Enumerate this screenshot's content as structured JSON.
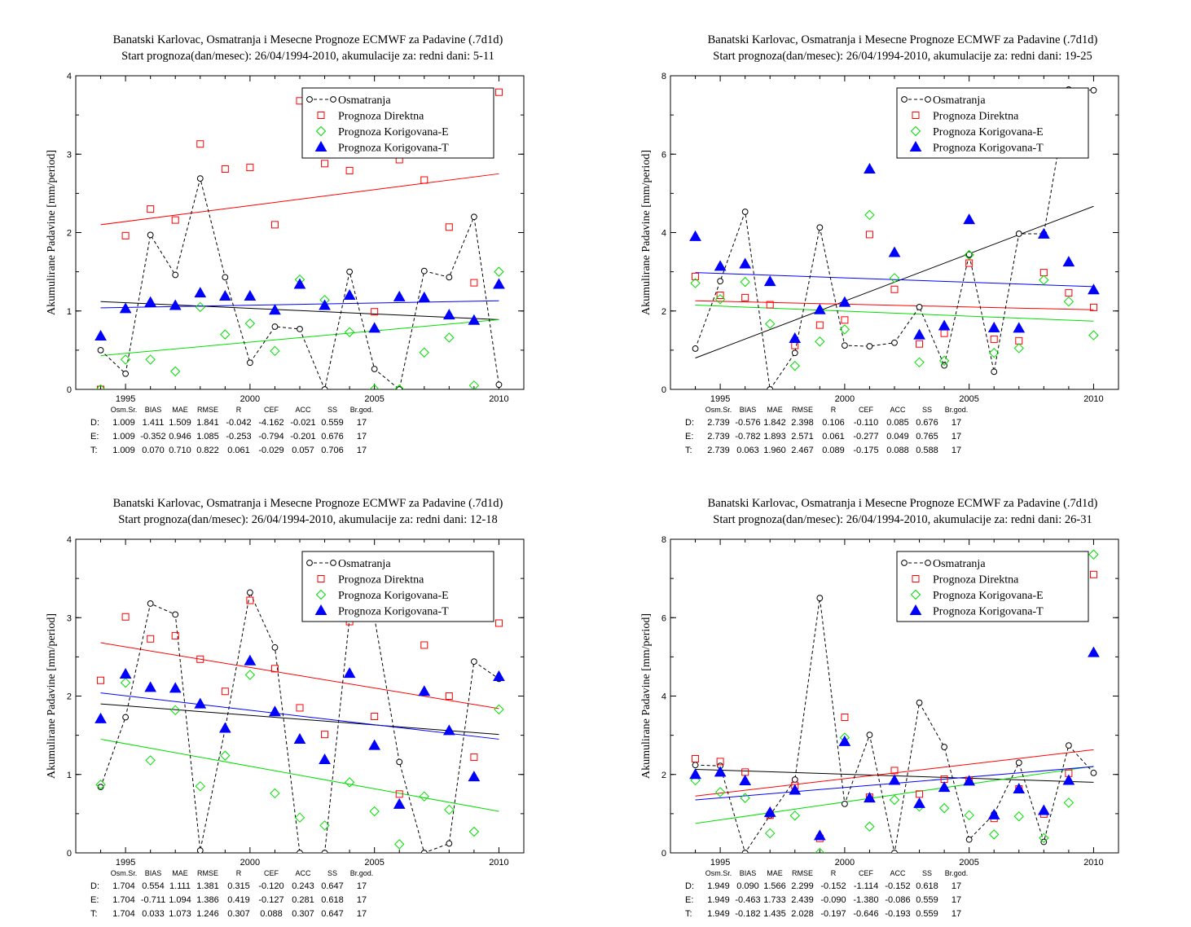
{
  "colors": {
    "osmatranja": "#000000",
    "direktna": "#ff0000",
    "korigovana_e": "#00e000",
    "korigovana_t": "#0000ff"
  },
  "stats_headers": [
    "Osm.Sr.",
    "BIAS",
    "MAE",
    "RMSE",
    "R",
    "CEF",
    "ACC",
    "SS",
    "Br.god."
  ],
  "chart_data": [
    {
      "type": "scatter",
      "title": "Banatski Karlovac, Osmatranja i Mesecne Prognoze ECMWF za Padavine (.7d1d)",
      "subtitle": "Start prognoza(dan/mesec): 26/04/1994-2010, akumulacije za: redni dani: 5-11",
      "xlabel": "",
      "ylabel": "Akumulirane Padavine [mm/period]",
      "xlim": [
        1993,
        2011
      ],
      "ylim": [
        0,
        4
      ],
      "xticks": [
        1995,
        2000,
        2005,
        2010
      ],
      "yticks": [
        0,
        1,
        2,
        3,
        4
      ],
      "legend_position": "top-right",
      "x": [
        1994,
        1995,
        1996,
        1997,
        1998,
        1999,
        2000,
        2001,
        2002,
        2003,
        2004,
        2005,
        2006,
        2007,
        2008,
        2009,
        2010
      ],
      "series": [
        {
          "name": "Osmatranja",
          "key": "osmatranja",
          "marker": "circle",
          "line": "dashed",
          "values": [
            0.5,
            0.2,
            1.97,
            1.46,
            2.69,
            1.43,
            0.34,
            0.8,
            0.77,
            0.0,
            1.5,
            0.26,
            0.0,
            1.51,
            1.43,
            2.2,
            0.06
          ],
          "trend": [
            1.12,
            0.89
          ]
        },
        {
          "name": "Prognoza Direktna",
          "key": "direktna",
          "marker": "square",
          "values": [
            0.0,
            1.96,
            2.3,
            2.16,
            3.13,
            2.81,
            2.83,
            2.1,
            3.68,
            2.88,
            2.79,
            0.99,
            2.93,
            2.67,
            2.07,
            1.36,
            3.79
          ],
          "trend": [
            2.1,
            2.75
          ]
        },
        {
          "name": "Prognoza Korigovana-E",
          "key": "korigovana_e",
          "marker": "diamond",
          "values": [
            0.0,
            0.38,
            0.38,
            0.23,
            1.05,
            0.7,
            0.84,
            0.49,
            1.4,
            1.14,
            0.73,
            0.0,
            0.0,
            0.47,
            0.66,
            0.05,
            1.5
          ],
          "trend": [
            0.43,
            0.89
          ]
        },
        {
          "name": "Prognoza Korigovana-T",
          "key": "korigovana_t",
          "marker": "triangle",
          "values": [
            0.68,
            1.03,
            1.11,
            1.07,
            1.23,
            1.19,
            1.19,
            1.01,
            1.34,
            1.07,
            1.2,
            0.78,
            1.18,
            1.17,
            0.95,
            0.88,
            1.34
          ],
          "trend": [
            1.04,
            1.13
          ]
        }
      ],
      "stats": [
        {
          "label": "D:",
          "key": "direktna",
          "values": [
            "1.009",
            "1.411",
            "1.509",
            "1.841",
            "-0.042",
            "-4.162",
            "-0.021",
            "0.559",
            "17"
          ]
        },
        {
          "label": "E:",
          "key": "korigovana_e",
          "values": [
            "1.009",
            "-0.352",
            "0.946",
            "1.085",
            "-0.253",
            "-0.794",
            "-0.201",
            "0.676",
            "17"
          ]
        },
        {
          "label": "T:",
          "key": "korigovana_t",
          "values": [
            "1.009",
            "0.070",
            "0.710",
            "0.822",
            "0.061",
            "-0.029",
            "0.057",
            "0.706",
            "17"
          ]
        }
      ]
    },
    {
      "type": "scatter",
      "title": "Banatski Karlovac, Osmatranja i Mesecne Prognoze ECMWF za Padavine (.7d1d)",
      "subtitle": "Start prognoza(dan/mesec): 26/04/1994-2010, akumulacije za: redni dani: 19-25",
      "xlabel": "",
      "ylabel": "Akumulirane Padavine [mm/period]",
      "xlim": [
        1993,
        2011
      ],
      "ylim": [
        0,
        8
      ],
      "xticks": [
        1995,
        2000,
        2005,
        2010
      ],
      "yticks": [
        0,
        2,
        4,
        6,
        8
      ],
      "legend_position": "top-right",
      "x": [
        1994,
        1995,
        1996,
        1997,
        1998,
        1999,
        2000,
        2001,
        2002,
        2003,
        2004,
        2005,
        2006,
        2007,
        2008,
        2009,
        2010
      ],
      "series": [
        {
          "name": "Osmatranja",
          "key": "osmatranja",
          "marker": "circle",
          "line": "dashed",
          "values": [
            1.04,
            2.76,
            4.53,
            0.0,
            0.93,
            4.13,
            1.12,
            1.1,
            1.19,
            2.1,
            0.61,
            3.44,
            0.45,
            3.97,
            3.97,
            7.65,
            7.63
          ],
          "trend": [
            0.8,
            4.67
          ]
        },
        {
          "name": "Prognoza Direktna",
          "key": "direktna",
          "marker": "square",
          "values": [
            2.88,
            2.4,
            2.34,
            2.16,
            1.12,
            1.64,
            1.77,
            3.95,
            2.55,
            1.16,
            1.43,
            3.22,
            1.28,
            1.24,
            2.98,
            2.46,
            2.09
          ],
          "trend": [
            2.26,
            2.03
          ]
        },
        {
          "name": "Prognoza Korigovana-E",
          "key": "korigovana_e",
          "marker": "diamond",
          "values": [
            2.71,
            2.3,
            2.74,
            1.67,
            0.6,
            1.22,
            1.53,
            4.45,
            2.84,
            0.69,
            0.73,
            3.43,
            0.93,
            1.05,
            2.79,
            2.24,
            1.38
          ],
          "trend": [
            2.15,
            1.74
          ]
        },
        {
          "name": "Prognoza Korigovana-T",
          "key": "korigovana_t",
          "marker": "triangle",
          "values": [
            3.9,
            3.14,
            3.2,
            2.75,
            1.3,
            2.03,
            2.22,
            5.62,
            3.49,
            1.39,
            1.62,
            4.33,
            1.57,
            1.56,
            3.96,
            3.25,
            2.54
          ],
          "trend": [
            2.98,
            2.62
          ]
        }
      ],
      "stats": [
        {
          "label": "D:",
          "key": "direktna",
          "values": [
            "2.739",
            "-0.576",
            "1.842",
            "2.398",
            "0.106",
            "-0.110",
            "0.085",
            "0.676",
            "17"
          ]
        },
        {
          "label": "E:",
          "key": "korigovana_e",
          "values": [
            "2.739",
            "-0.782",
            "1.893",
            "2.571",
            "0.061",
            "-0.277",
            "0.049",
            "0.765",
            "17"
          ]
        },
        {
          "label": "T:",
          "key": "korigovana_t",
          "values": [
            "2.739",
            "0.063",
            "1.960",
            "2.467",
            "0.089",
            "-0.175",
            "0.088",
            "0.588",
            "17"
          ]
        }
      ]
    },
    {
      "type": "scatter",
      "title": "Banatski Karlovac, Osmatranja i Mesecne Prognoze ECMWF za Padavine (.7d1d)",
      "subtitle": "Start prognoza(dan/mesec): 26/04/1994-2010, akumulacije za: redni dani: 12-18",
      "xlabel": "",
      "ylabel": "Akumulirane Padavine [mm/period]",
      "xlim": [
        1993,
        2011
      ],
      "ylim": [
        0,
        4
      ],
      "xticks": [
        1995,
        2000,
        2005,
        2010
      ],
      "yticks": [
        0,
        1,
        2,
        3,
        4
      ],
      "legend_position": "top-right",
      "x": [
        1994,
        1995,
        1996,
        1997,
        1998,
        1999,
        2000,
        2001,
        2002,
        2003,
        2004,
        2005,
        2006,
        2007,
        2008,
        2009,
        2010
      ],
      "series": [
        {
          "name": "Osmatranja",
          "key": "osmatranja",
          "marker": "circle",
          "line": "dashed",
          "values": [
            0.84,
            1.73,
            3.18,
            3.04,
            0.03,
            1.58,
            3.32,
            2.62,
            0.0,
            0.0,
            3.0,
            3.0,
            1.16,
            0.0,
            0.12,
            2.44,
            2.22
          ],
          "trend": [
            1.9,
            1.51
          ]
        },
        {
          "name": "Prognoza Direktna",
          "key": "direktna",
          "marker": "square",
          "values": [
            2.2,
            3.01,
            2.73,
            2.77,
            2.47,
            2.06,
            3.22,
            2.35,
            1.85,
            1.51,
            2.95,
            1.74,
            0.75,
            2.65,
            2.0,
            1.22,
            2.93
          ],
          "trend": [
            2.68,
            1.84
          ]
        },
        {
          "name": "Prognoza Korigovana-E",
          "key": "korigovana_e",
          "marker": "diamond",
          "values": [
            0.87,
            2.17,
            1.18,
            1.82,
            0.85,
            1.24,
            2.27,
            0.76,
            0.45,
            0.35,
            0.9,
            0.53,
            0.11,
            0.72,
            0.55,
            0.27,
            1.83
          ],
          "trend": [
            1.45,
            0.53
          ]
        },
        {
          "name": "Prognoza Korigovana-T",
          "key": "korigovana_t",
          "marker": "triangle",
          "values": [
            1.71,
            2.28,
            2.11,
            2.1,
            1.9,
            1.59,
            2.45,
            1.8,
            1.45,
            1.19,
            2.29,
            1.37,
            0.62,
            2.06,
            1.56,
            0.97,
            2.25
          ],
          "trend": [
            2.04,
            1.45
          ]
        }
      ],
      "stats": [
        {
          "label": "D:",
          "key": "direktna",
          "values": [
            "1.704",
            "0.554",
            "1.111",
            "1.381",
            "0.315",
            "-0.120",
            "0.243",
            "0.647",
            "17"
          ]
        },
        {
          "label": "E:",
          "key": "korigovana_e",
          "values": [
            "1.704",
            "-0.711",
            "1.094",
            "1.386",
            "0.419",
            "-0.127",
            "0.281",
            "0.618",
            "17"
          ]
        },
        {
          "label": "T:",
          "key": "korigovana_t",
          "values": [
            "1.704",
            "0.033",
            "1.073",
            "1.246",
            "0.307",
            "0.088",
            "0.307",
            "0.647",
            "17"
          ]
        }
      ]
    },
    {
      "type": "scatter",
      "title": "Banatski Karlovac, Osmatranja i Mesecne Prognoze ECMWF za Padavine (.7d1d)",
      "subtitle": "Start prognoza(dan/mesec): 26/04/1994-2010, akumulacije za: redni dani: 26-31",
      "xlabel": "",
      "ylabel": "Akumulirane Padavine [mm/period]",
      "xlim": [
        1993,
        2011
      ],
      "ylim": [
        0,
        8
      ],
      "xticks": [
        1995,
        2000,
        2005,
        2010
      ],
      "yticks": [
        0,
        2,
        4,
        6,
        8
      ],
      "legend_position": "top-right",
      "x": [
        1994,
        1995,
        1996,
        1997,
        1998,
        1999,
        2000,
        2001,
        2002,
        2003,
        2004,
        2005,
        2006,
        2007,
        2008,
        2009,
        2010
      ],
      "series": [
        {
          "name": "Osmatranja",
          "key": "osmatranja",
          "marker": "circle",
          "line": "dashed",
          "values": [
            2.24,
            2.22,
            0.0,
            0.96,
            1.87,
            6.5,
            1.25,
            3.01,
            0.0,
            3.83,
            2.7,
            0.34,
            0.99,
            2.3,
            0.28,
            2.74,
            2.04
          ],
          "trend": [
            2.13,
            1.8
          ]
        },
        {
          "name": "Prognoza Direktna",
          "key": "direktna",
          "marker": "square",
          "values": [
            2.4,
            2.33,
            2.06,
            0.96,
            1.72,
            0.37,
            3.46,
            1.42,
            2.1,
            1.5,
            1.88,
            1.85,
            0.88,
            1.63,
            0.99,
            2.03,
            7.1
          ],
          "trend": [
            1.45,
            2.63
          ]
        },
        {
          "name": "Prognoza Korigovana-E",
          "key": "korigovana_e",
          "marker": "diamond",
          "values": [
            1.85,
            1.55,
            1.4,
            0.5,
            0.95,
            0.0,
            2.94,
            0.67,
            1.35,
            1.18,
            1.14,
            0.96,
            0.47,
            0.93,
            0.38,
            1.28,
            7.61
          ],
          "trend": [
            0.75,
            2.21
          ]
        },
        {
          "name": "Prognoza Korigovana-T",
          "key": "korigovana_t",
          "marker": "triangle",
          "values": [
            2.0,
            2.06,
            1.84,
            1.03,
            1.6,
            0.44,
            2.84,
            1.4,
            1.85,
            1.26,
            1.67,
            1.83,
            0.97,
            1.63,
            1.08,
            1.85,
            5.11
          ],
          "trend": [
            1.35,
            2.2
          ]
        }
      ],
      "stats": [
        {
          "label": "D:",
          "key": "direktna",
          "values": [
            "1.949",
            "0.090",
            "1.566",
            "2.299",
            "-0.152",
            "-1.114",
            "-0.152",
            "0.618",
            "17"
          ]
        },
        {
          "label": "E:",
          "key": "korigovana_e",
          "values": [
            "1.949",
            "-0.463",
            "1.733",
            "2.439",
            "-0.090",
            "-1.380",
            "-0.086",
            "0.559",
            "17"
          ]
        },
        {
          "label": "T:",
          "key": "korigovana_t",
          "values": [
            "1.949",
            "-0.182",
            "1.435",
            "2.028",
            "-0.197",
            "-0.646",
            "-0.193",
            "0.559",
            "17"
          ]
        }
      ]
    }
  ]
}
